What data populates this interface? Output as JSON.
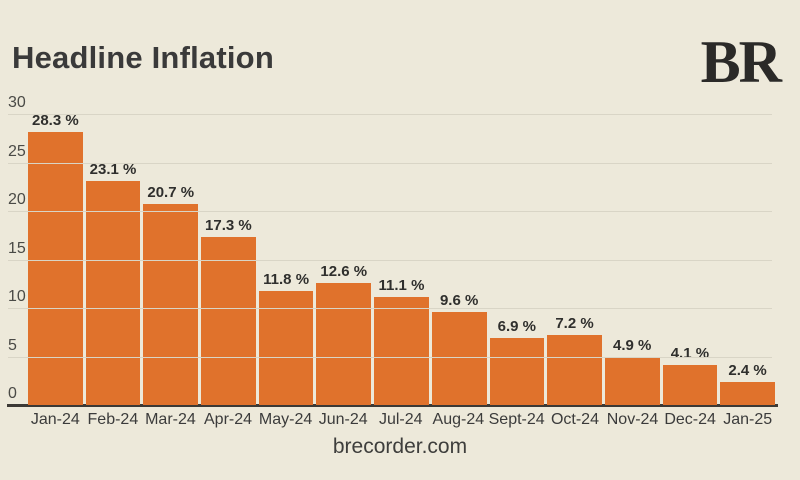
{
  "header": {
    "title": "Headline Inflation",
    "logo": "BR"
  },
  "footer": {
    "credit": "brecorder.com"
  },
  "colors": {
    "background": "#EDE9DA",
    "bar": "#E0722C",
    "gridline": "#D9D5C6",
    "axis": "#3C3935",
    "text": "#3A3A3A"
  },
  "chart_data": {
    "type": "bar",
    "title": "Headline Inflation",
    "categories": [
      "Jan-24",
      "Feb-24",
      "Mar-24",
      "Apr-24",
      "May-24",
      "Jun-24",
      "Jul-24",
      "Aug-24",
      "Sept-24",
      "Oct-24",
      "Nov-24",
      "Dec-24",
      "Jan-25"
    ],
    "values": [
      28.3,
      23.1,
      20.7,
      17.3,
      11.8,
      12.6,
      11.1,
      9.6,
      6.9,
      7.2,
      4.9,
      4.1,
      2.4
    ],
    "value_labels": [
      "28.3 %",
      "23.1 %",
      "20.7 %",
      "17.3 %",
      "11.8 %",
      "12.6 %",
      "11.1 %",
      "9.6 %",
      "6.9 %",
      "7.2 %",
      "4.9 %",
      "4.1 %",
      "2.4 %"
    ],
    "y_ticks": [
      30,
      25,
      20,
      15,
      10,
      5,
      0
    ],
    "ylim": [
      0,
      30
    ],
    "xlabel": "",
    "ylabel": "",
    "grid": true,
    "legend": "none",
    "bar_color": "#E0722C",
    "source_credit": "brecorder.com"
  }
}
